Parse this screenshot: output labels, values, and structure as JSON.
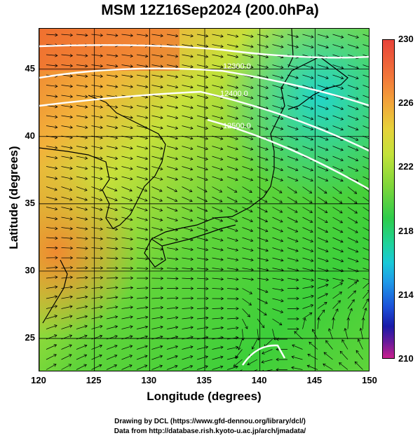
{
  "title": "MSM 12Z16Sep2024 (200.0hPa)",
  "xlabel": "Longitude (degrees)",
  "ylabel": "Latitude  (degrees)",
  "x_ticks": [
    "120",
    "125",
    "130",
    "135",
    "140",
    "145",
    "150"
  ],
  "y_ticks": [
    "25",
    "30",
    "35",
    "40",
    "45"
  ],
  "colorbar": {
    "ticks": [
      "230",
      "226",
      "222",
      "218",
      "214",
      "210"
    ],
    "min": 210,
    "max": 230
  },
  "contour_labels": [
    "12300.0",
    "12400.0",
    "12500.0"
  ],
  "credits": {
    "line1": "Drawing by DCL (https://www.gfd-dennou.org/library/dcl/)",
    "line2": "Data from http://database.rish.kyoto-u.ac.jp/arch/jmadata/"
  },
  "colors": {
    "warm": "#f08a30",
    "mid": "#bfe03a",
    "green": "#3ccf3a",
    "cool": "#1fd3b0"
  }
}
